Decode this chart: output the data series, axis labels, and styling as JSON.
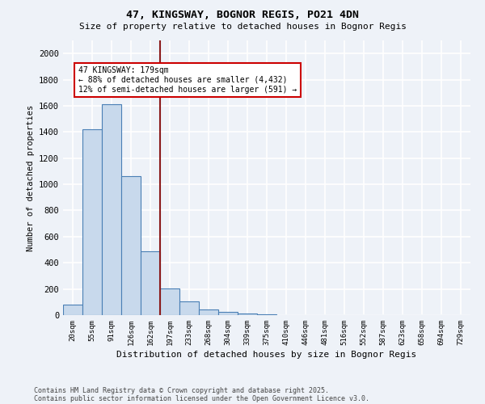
{
  "title1": "47, KINGSWAY, BOGNOR REGIS, PO21 4DN",
  "title2": "Size of property relative to detached houses in Bognor Regis",
  "xlabel": "Distribution of detached houses by size in Bognor Regis",
  "ylabel": "Number of detached properties",
  "bar_labels": [
    "20sqm",
    "55sqm",
    "91sqm",
    "126sqm",
    "162sqm",
    "197sqm",
    "233sqm",
    "268sqm",
    "304sqm",
    "339sqm",
    "375sqm",
    "410sqm",
    "446sqm",
    "481sqm",
    "516sqm",
    "552sqm",
    "587sqm",
    "623sqm",
    "658sqm",
    "694sqm",
    "729sqm"
  ],
  "bar_values": [
    80,
    1420,
    1610,
    1060,
    490,
    205,
    105,
    45,
    25,
    12,
    8,
    0,
    0,
    0,
    0,
    0,
    0,
    0,
    0,
    0,
    0
  ],
  "bar_color": "#c8d9ec",
  "bar_edge_color": "#4a7fb5",
  "vline_x": 4.5,
  "vline_color": "#8b1a1a",
  "annotation_title": "47 KINGSWAY: 179sqm",
  "annotation_line1": "← 88% of detached houses are smaller (4,432)",
  "annotation_line2": "12% of semi-detached houses are larger (591) →",
  "annotation_box_color": "#ffffff",
  "annotation_box_edge": "#cc0000",
  "ylim": [
    0,
    2100
  ],
  "yticks": [
    0,
    200,
    400,
    600,
    800,
    1000,
    1200,
    1400,
    1600,
    1800,
    2000
  ],
  "footnote1": "Contains HM Land Registry data © Crown copyright and database right 2025.",
  "footnote2": "Contains public sector information licensed under the Open Government Licence v3.0.",
  "bg_color": "#eef2f8",
  "grid_color": "#ffffff"
}
